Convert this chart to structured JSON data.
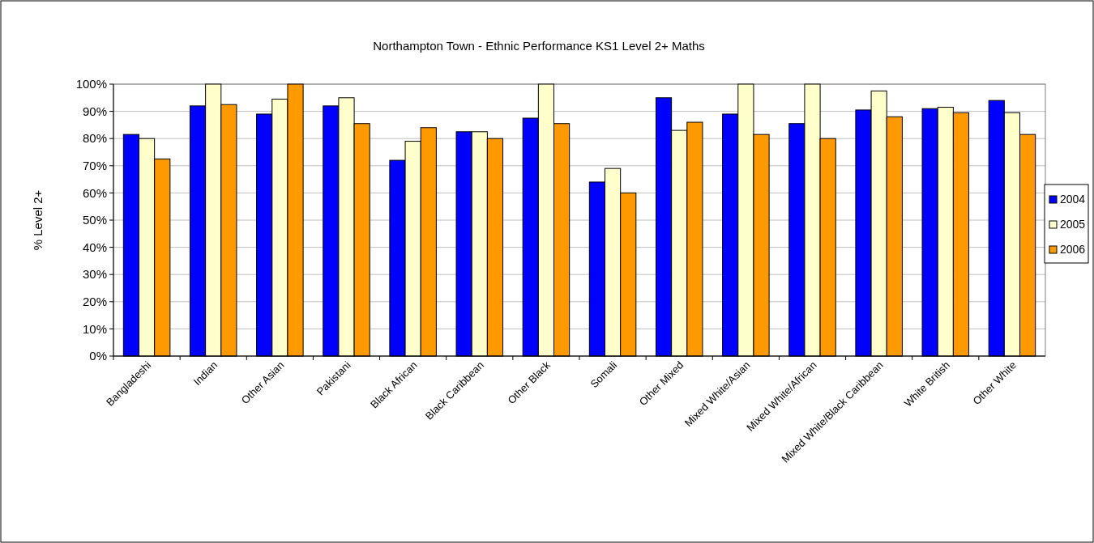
{
  "chart_data": {
    "type": "bar",
    "title": "Northampton Town - Ethnic Performance KS1 Level 2+ Maths",
    "ylabel": "% Level 2+",
    "categories": [
      "Bangladeshi",
      "Indian",
      "Other Asian",
      "Pakistani",
      "Black African",
      "Black Caribbean",
      "Other Black",
      "Somali",
      "Other Mixed",
      "Mixed White/Asian",
      "Mixed White/African",
      "Mixed White/Black Caribbean",
      "White British",
      "Other White"
    ],
    "series": [
      {
        "name": "2004",
        "color": "#0000ff",
        "values": [
          81.5,
          92,
          89,
          92,
          72,
          82.5,
          87.5,
          64,
          95,
          89,
          85.5,
          90.5,
          91,
          94
        ]
      },
      {
        "name": "2005",
        "color": "#ffffcc",
        "values": [
          80,
          100,
          94.5,
          95,
          79,
          82.5,
          100,
          69,
          83,
          100,
          100,
          97.5,
          91.5,
          89.5
        ]
      },
      {
        "name": "2006",
        "color": "#ff9900",
        "values": [
          72.5,
          92.5,
          100,
          85.5,
          84,
          80,
          85.5,
          60,
          86,
          81.5,
          80,
          88,
          89.5,
          81.5
        ]
      }
    ],
    "ylim": [
      0,
      100
    ],
    "yticks": [
      {
        "value": 0,
        "label": "0%"
      },
      {
        "value": 10,
        "label": "10%"
      },
      {
        "value": 20,
        "label": "20%"
      },
      {
        "value": 30,
        "label": "30%"
      },
      {
        "value": 40,
        "label": "40%"
      },
      {
        "value": 50,
        "label": "50%"
      },
      {
        "value": 60,
        "label": "60%"
      },
      {
        "value": 70,
        "label": "70%"
      },
      {
        "value": 80,
        "label": "80%"
      },
      {
        "value": 90,
        "label": "90%"
      },
      {
        "value": 100,
        "label": "100%"
      }
    ],
    "grid": "y",
    "legend": "right"
  }
}
